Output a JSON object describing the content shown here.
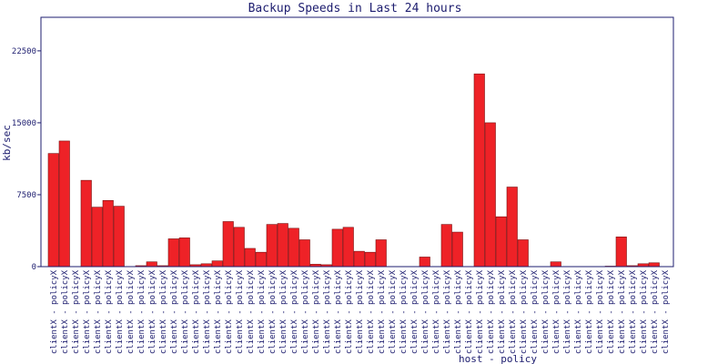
{
  "chart_data": {
    "type": "bar",
    "title": "Backup Speeds in Last  24 hours",
    "xlabel": "host - policy",
    "ylabel": "kb/sec",
    "ylim": [
      0,
      26000
    ],
    "yticks": [
      0,
      7500,
      15000,
      22500
    ],
    "grid": false,
    "bar_color": "#ee2227",
    "axis_color": "#1d1d6f",
    "categories": [
      "clientX - policyX",
      "clientX - policyX",
      "clientX - policyX",
      "clientX - policyX",
      "clientX - policyX",
      "clientX - policyX",
      "clientX - policyX",
      "clientX - policyX",
      "clientX - policyX",
      "clientX - policyX",
      "clientX - policyX",
      "clientX - policyX",
      "clientX - policyX",
      "clientX - policyX",
      "clientX - policyX",
      "clientX - policyX",
      "clientX - policyX",
      "clientX - policyX",
      "clientX - policyX",
      "clientX - policyX",
      "clientX - policyX",
      "clientX - policyX",
      "clientX - policyX",
      "clientX - policyX",
      "clientX - policyX",
      "clientX - policyX",
      "clientX - policyX",
      "clientX - policyX",
      "clientX - policyX",
      "clientX - policyX",
      "clientX - policyX",
      "clientX - policyX",
      "clientX - policyX",
      "clientX - policyX",
      "clientX - policyX",
      "clientX - policyX",
      "clientX - policyX",
      "clientX - policyX",
      "clientX - policyX",
      "clientX - policyX",
      "clientX - policyX",
      "clientX - policyX",
      "clientX - policyX",
      "clientX - policyX",
      "clientX - policyX",
      "clientX - policyX",
      "clientX - policyX",
      "clientX - policyX",
      "clientX - policyX",
      "clientX - policyX",
      "clientX - policyX",
      "clientX - policyX",
      "clientX - policyX",
      "clientX - policyX",
      "clientX - policyX",
      "clientX - policyX",
      "clientX - policyX"
    ],
    "values": [
      11800,
      13100,
      0,
      9000,
      6200,
      6900,
      6300,
      0,
      100,
      500,
      100,
      2900,
      3000,
      200,
      300,
      600,
      4700,
      4100,
      1900,
      1500,
      4400,
      4500,
      4000,
      2800,
      250,
      200,
      3900,
      4100,
      1600,
      1500,
      2800,
      0,
      0,
      0,
      1000,
      0,
      4400,
      3600,
      0,
      20100,
      15000,
      5200,
      8300,
      2800,
      0,
      0,
      500,
      0,
      0,
      0,
      0,
      50,
      3100,
      100,
      300,
      400,
      0
    ]
  }
}
